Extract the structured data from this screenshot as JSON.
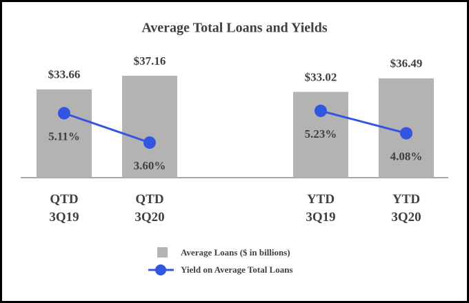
{
  "chart_data": {
    "type": "bar_line",
    "title": "Average Total Loans and Yields",
    "categories": [
      "QTD 3Q19",
      "QTD 3Q20",
      null,
      "YTD 3Q19",
      "YTD 3Q20"
    ],
    "ylim": [
      11,
      46
    ],
    "y2lim": [
      1.8,
      8.8
    ],
    "legend": "bottom",
    "series": [
      {
        "name": "Average Loans ($ in billions)",
        "type": "bar",
        "color": "#b3b3b3",
        "values": [
          33.66,
          37.16,
          null,
          33.02,
          36.49
        ],
        "value_labels": [
          "$33.66",
          "$37.16",
          null,
          "$33.02",
          "$36.49"
        ]
      },
      {
        "name": "Yield on Average Total Loans",
        "type": "line",
        "axis": "y2",
        "color": "#3355e0",
        "values": [
          5.11,
          3.6,
          null,
          5.23,
          4.08
        ],
        "value_labels": [
          "5.11%",
          "3.60%",
          null,
          "5.23%",
          "4.08%"
        ]
      }
    ]
  }
}
